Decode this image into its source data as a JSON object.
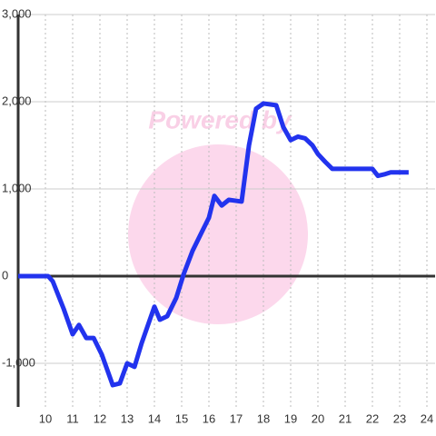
{
  "chart_data": {
    "type": "line",
    "watermark": "Powered by",
    "x": [
      9,
      10.1,
      10.27,
      10.67,
      11.0,
      11.23,
      11.5,
      11.77,
      12.07,
      12.47,
      12.73,
      13.0,
      13.27,
      13.53,
      14.0,
      14.2,
      14.47,
      14.8,
      15.07,
      15.4,
      15.73,
      16.0,
      16.2,
      16.47,
      16.73,
      17.2,
      17.47,
      17.73,
      18.0,
      18.47,
      18.73,
      19.0,
      19.27,
      19.53,
      19.8,
      20.0,
      20.27,
      20.53,
      22.0,
      22.2,
      22.47,
      22.67,
      23.33
    ],
    "series": [
      {
        "color": "#2233ee",
        "values": [
          0,
          0,
          -60,
          -375,
          -667,
          -560,
          -710,
          -710,
          -900,
          -1250,
          -1230,
          -1000,
          -1040,
          -770,
          -350,
          -500,
          -460,
          -250,
          20,
          290,
          500,
          670,
          920,
          810,
          875,
          855,
          1500,
          1920,
          1980,
          1960,
          1710,
          1560,
          1600,
          1580,
          1500,
          1400,
          1310,
          1230,
          1230,
          1150,
          1170,
          1190,
          1190
        ]
      }
    ],
    "xlim": [
      9,
      24.3
    ],
    "xticks": [
      10,
      11,
      12,
      13,
      14,
      15,
      16,
      17,
      18,
      19,
      20,
      21,
      22,
      23,
      24
    ],
    "ylim": [
      -1500,
      3000
    ],
    "yticks": [
      {
        "value": -1000,
        "label": "-1,000"
      },
      0,
      {
        "value": 1000,
        "label": "1,000"
      },
      {
        "value": 2000,
        "label": "2,000"
      },
      {
        "value": 3000,
        "label": "3,000"
      }
    ],
    "grid": true
  }
}
